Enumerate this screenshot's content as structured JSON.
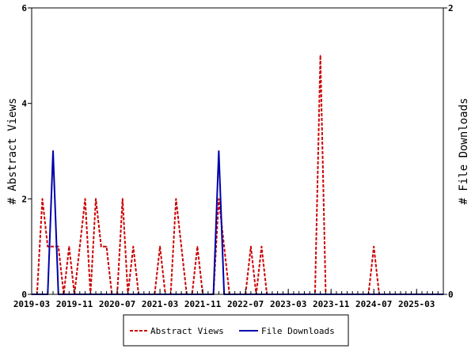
{
  "chart_data": {
    "type": "line",
    "title": "",
    "xlabel": "",
    "ylabel_left": "# Abstract Views",
    "ylabel_right": "# File Downloads",
    "x_tick_labels": [
      "2019-03",
      "2019-11",
      "2020-07",
      "2021-03",
      "2021-11",
      "2022-07",
      "2023-03",
      "2023-11",
      "2024-07",
      "2025-03"
    ],
    "y_left_ticks": [
      "0",
      "2",
      "4",
      "6"
    ],
    "y_right_ticks": [
      "0",
      "2"
    ],
    "y_left_range": [
      0,
      6
    ],
    "y_right_range": [
      0,
      2
    ],
    "x_range": [
      "2019-03",
      "2025-08"
    ],
    "grid": false,
    "legend_position": "bottom",
    "series": [
      {
        "name": "Abstract Views",
        "axis": "left",
        "color": "#cc0000",
        "dash": true,
        "points": [
          [
            "2019-03",
            0
          ],
          [
            "2019-04",
            0
          ],
          [
            "2019-05",
            2
          ],
          [
            "2019-06",
            1
          ],
          [
            "2019-07",
            1
          ],
          [
            "2019-08",
            1
          ],
          [
            "2019-09",
            0
          ],
          [
            "2019-10",
            1
          ],
          [
            "2019-11",
            0
          ],
          [
            "2019-12",
            1
          ],
          [
            "2020-01",
            2
          ],
          [
            "2020-02",
            0
          ],
          [
            "2020-03",
            2
          ],
          [
            "2020-04",
            1
          ],
          [
            "2020-05",
            1
          ],
          [
            "2020-06",
            0
          ],
          [
            "2020-07",
            0
          ],
          [
            "2020-08",
            2
          ],
          [
            "2020-09",
            0
          ],
          [
            "2020-10",
            1
          ],
          [
            "2020-11",
            0
          ],
          [
            "2020-12",
            0
          ],
          [
            "2021-01",
            0
          ],
          [
            "2021-02",
            0
          ],
          [
            "2021-03",
            1
          ],
          [
            "2021-04",
            0
          ],
          [
            "2021-05",
            0
          ],
          [
            "2021-06",
            2
          ],
          [
            "2021-07",
            1
          ],
          [
            "2021-08",
            0
          ],
          [
            "2021-09",
            0
          ],
          [
            "2021-10",
            1
          ],
          [
            "2021-11",
            0
          ],
          [
            "2021-12",
            0
          ],
          [
            "2022-01",
            0
          ],
          [
            "2022-02",
            2
          ],
          [
            "2022-03",
            1
          ],
          [
            "2022-04",
            0
          ],
          [
            "2022-05",
            0
          ],
          [
            "2022-06",
            0
          ],
          [
            "2022-07",
            0
          ],
          [
            "2022-08",
            1
          ],
          [
            "2022-09",
            0
          ],
          [
            "2022-10",
            1
          ],
          [
            "2022-11",
            0
          ],
          [
            "2022-12",
            0
          ],
          [
            "2023-01",
            0
          ],
          [
            "2023-02",
            0
          ],
          [
            "2023-03",
            0
          ],
          [
            "2023-04",
            0
          ],
          [
            "2023-05",
            0
          ],
          [
            "2023-06",
            0
          ],
          [
            "2023-07",
            0
          ],
          [
            "2023-08",
            0
          ],
          [
            "2023-09",
            5
          ],
          [
            "2023-10",
            0
          ],
          [
            "2023-11",
            0
          ],
          [
            "2023-12",
            0
          ],
          [
            "2024-01",
            0
          ],
          [
            "2024-02",
            0
          ],
          [
            "2024-03",
            0
          ],
          [
            "2024-04",
            0
          ],
          [
            "2024-05",
            0
          ],
          [
            "2024-06",
            0
          ],
          [
            "2024-07",
            1
          ],
          [
            "2024-08",
            0
          ],
          [
            "2024-09",
            0
          ],
          [
            "2024-10",
            0
          ],
          [
            "2024-11",
            0
          ],
          [
            "2024-12",
            0
          ],
          [
            "2025-01",
            0
          ],
          [
            "2025-02",
            0
          ],
          [
            "2025-03",
            0
          ],
          [
            "2025-04",
            0
          ],
          [
            "2025-05",
            0
          ],
          [
            "2025-06",
            0
          ],
          [
            "2025-07",
            0
          ],
          [
            "2025-08",
            0
          ]
        ]
      },
      {
        "name": "File Downloads",
        "axis": "right",
        "color": "#0000aa",
        "dash": false,
        "points": [
          [
            "2019-03",
            0
          ],
          [
            "2019-04",
            0
          ],
          [
            "2019-05",
            0
          ],
          [
            "2019-06",
            0
          ],
          [
            "2019-07",
            1
          ],
          [
            "2019-08",
            0
          ],
          [
            "2019-09",
            0
          ],
          [
            "2019-10",
            0
          ],
          [
            "2019-11",
            0
          ],
          [
            "2019-12",
            0
          ],
          [
            "2020-01",
            0
          ],
          [
            "2020-02",
            0
          ],
          [
            "2020-03",
            0
          ],
          [
            "2020-04",
            0
          ],
          [
            "2020-05",
            0
          ],
          [
            "2020-06",
            0
          ],
          [
            "2020-07",
            0
          ],
          [
            "2020-08",
            0
          ],
          [
            "2020-09",
            0
          ],
          [
            "2020-10",
            0
          ],
          [
            "2020-11",
            0
          ],
          [
            "2020-12",
            0
          ],
          [
            "2021-01",
            0
          ],
          [
            "2021-02",
            0
          ],
          [
            "2021-03",
            0
          ],
          [
            "2021-04",
            0
          ],
          [
            "2021-05",
            0
          ],
          [
            "2021-06",
            0
          ],
          [
            "2021-07",
            0
          ],
          [
            "2021-08",
            0
          ],
          [
            "2021-09",
            0
          ],
          [
            "2021-10",
            0
          ],
          [
            "2021-11",
            0
          ],
          [
            "2021-12",
            0
          ],
          [
            "2022-01",
            0
          ],
          [
            "2022-02",
            1
          ],
          [
            "2022-03",
            0
          ],
          [
            "2022-04",
            0
          ],
          [
            "2022-05",
            0
          ],
          [
            "2022-06",
            0
          ],
          [
            "2022-07",
            0
          ],
          [
            "2022-08",
            0
          ],
          [
            "2022-09",
            0
          ],
          [
            "2022-10",
            0
          ],
          [
            "2022-11",
            0
          ],
          [
            "2022-12",
            0
          ],
          [
            "2023-01",
            0
          ],
          [
            "2023-02",
            0
          ],
          [
            "2023-03",
            0
          ],
          [
            "2023-04",
            0
          ],
          [
            "2023-05",
            0
          ],
          [
            "2023-06",
            0
          ],
          [
            "2023-07",
            0
          ],
          [
            "2023-08",
            0
          ],
          [
            "2023-09",
            0
          ],
          [
            "2023-10",
            0
          ],
          [
            "2023-11",
            0
          ],
          [
            "2023-12",
            0
          ],
          [
            "2024-01",
            0
          ],
          [
            "2024-02",
            0
          ],
          [
            "2024-03",
            0
          ],
          [
            "2024-04",
            0
          ],
          [
            "2024-05",
            0
          ],
          [
            "2024-06",
            0
          ],
          [
            "2024-07",
            0
          ],
          [
            "2024-08",
            0
          ],
          [
            "2024-09",
            0
          ],
          [
            "2024-10",
            0
          ],
          [
            "2024-11",
            0
          ],
          [
            "2024-12",
            0
          ],
          [
            "2025-01",
            0
          ],
          [
            "2025-02",
            0
          ],
          [
            "2025-03",
            0
          ],
          [
            "2025-04",
            0
          ],
          [
            "2025-05",
            0
          ],
          [
            "2025-06",
            0
          ],
          [
            "2025-07",
            0
          ],
          [
            "2025-08",
            0
          ]
        ]
      }
    ]
  }
}
